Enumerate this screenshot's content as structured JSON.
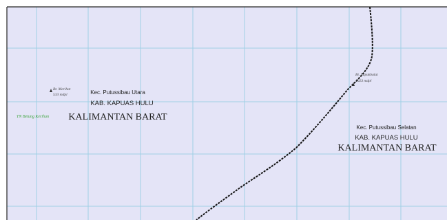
{
  "peaks": [
    {
      "name": "Bt. Merihat",
      "elevation": "533 mdpl"
    },
    {
      "name": "Bt. Lapukbalat",
      "elevation": "1023 mdpl"
    }
  ],
  "regions": [
    {
      "district": "Kec. Putussibau Utara",
      "regency": "KAB. KAPUAS HULU",
      "province": "KALIMANTAN BARAT"
    },
    {
      "district": "Kec. Putussibau Selatan",
      "regency": "KAB. KAPUAS HULU",
      "province": "KALIMANTAN BARAT"
    }
  ],
  "park": "TN Betung Kerihun"
}
